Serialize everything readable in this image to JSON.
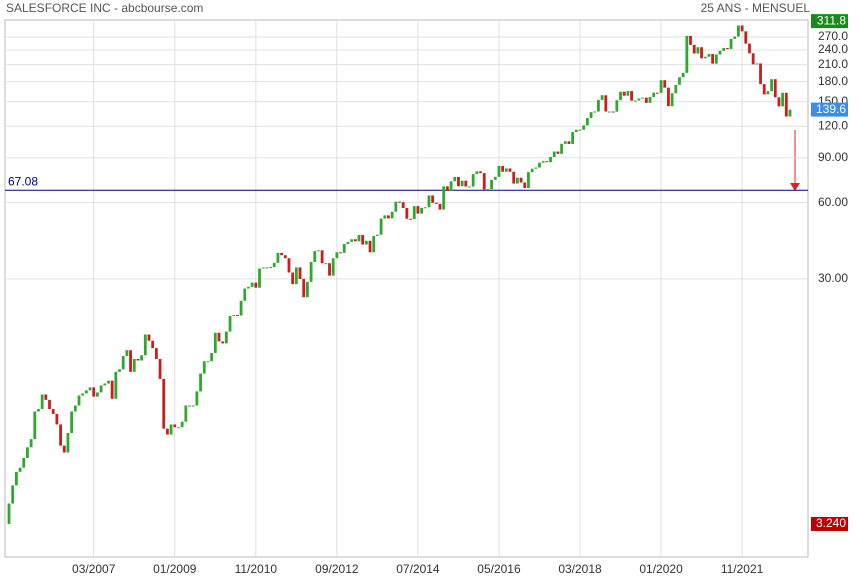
{
  "chart_data": {
    "type": "candlestick",
    "title": "SALESFORCE INC - abcbourse.com",
    "subtitle": "25 ANS - MENSUEL",
    "log_scale": true,
    "grid": true,
    "up_color": "#2fa82f",
    "down_color": "#c81e1e",
    "x": [
      "04/2005",
      "05/2005",
      "06/2005",
      "07/2005",
      "08/2005",
      "09/2005",
      "10/2005",
      "11/2005",
      "12/2005",
      "01/2006",
      "02/2006",
      "03/2006",
      "04/2006",
      "05/2006",
      "06/2006",
      "07/2006",
      "08/2006",
      "09/2006",
      "10/2006",
      "11/2006",
      "12/2006",
      "01/2007",
      "02/2007",
      "03/2007",
      "04/2007",
      "05/2007",
      "06/2007",
      "07/2007",
      "08/2007",
      "09/2007",
      "10/2007",
      "11/2007",
      "12/2007",
      "01/2008",
      "02/2008",
      "03/2008",
      "04/2008",
      "05/2008",
      "06/2008",
      "07/2008",
      "08/2008",
      "09/2008",
      "10/2008",
      "11/2008",
      "12/2008",
      "01/2009",
      "02/2009",
      "03/2009",
      "04/2009",
      "05/2009",
      "06/2009",
      "07/2009",
      "08/2009",
      "09/2009",
      "10/2009",
      "11/2009",
      "12/2009",
      "01/2010",
      "02/2010",
      "03/2010",
      "04/2010",
      "05/2010",
      "06/2010",
      "07/2010",
      "08/2010",
      "09/2010",
      "10/2010",
      "11/2010",
      "12/2010",
      "01/2011",
      "02/2011",
      "03/2011",
      "04/2011",
      "05/2011",
      "06/2011",
      "07/2011",
      "08/2011",
      "09/2011",
      "10/2011",
      "11/2011",
      "12/2011",
      "01/2012",
      "02/2012",
      "03/2012",
      "04/2012",
      "05/2012",
      "06/2012",
      "07/2012",
      "08/2012",
      "09/2012",
      "10/2012",
      "11/2012",
      "12/2012",
      "01/2013",
      "02/2013",
      "03/2013",
      "04/2013",
      "05/2013",
      "06/2013",
      "07/2013",
      "08/2013",
      "09/2013",
      "10/2013",
      "11/2013",
      "12/2013",
      "01/2014",
      "02/2014",
      "03/2014",
      "04/2014",
      "05/2014",
      "06/2014",
      "07/2014",
      "08/2014",
      "09/2014",
      "10/2014",
      "11/2014",
      "12/2014",
      "01/2015",
      "02/2015",
      "03/2015",
      "04/2015",
      "05/2015",
      "06/2015",
      "07/2015",
      "08/2015",
      "09/2015",
      "10/2015",
      "11/2015",
      "12/2015",
      "01/2016",
      "02/2016",
      "03/2016",
      "04/2016",
      "05/2016",
      "06/2016",
      "07/2016",
      "08/2016",
      "09/2016",
      "10/2016",
      "11/2016",
      "12/2016",
      "01/2017",
      "02/2017",
      "03/2017",
      "04/2017",
      "05/2017",
      "06/2017",
      "07/2017",
      "08/2017",
      "09/2017",
      "10/2017",
      "11/2017",
      "12/2017",
      "01/2018",
      "02/2018",
      "03/2018",
      "04/2018",
      "05/2018",
      "06/2018",
      "07/2018",
      "08/2018",
      "09/2018",
      "10/2018",
      "11/2018",
      "12/2018",
      "01/2019",
      "02/2019",
      "03/2019",
      "04/2019",
      "05/2019",
      "06/2019",
      "07/2019",
      "08/2019",
      "09/2019",
      "10/2019",
      "11/2019",
      "12/2019",
      "01/2020",
      "02/2020",
      "03/2020",
      "04/2020",
      "05/2020",
      "06/2020",
      "07/2020",
      "08/2020",
      "09/2020",
      "10/2020",
      "11/2020",
      "12/2020",
      "01/2021",
      "02/2021",
      "03/2021",
      "04/2021",
      "05/2021",
      "06/2021",
      "07/2021",
      "08/2021",
      "09/2021",
      "10/2021",
      "11/2021",
      "12/2021",
      "01/2022",
      "02/2022",
      "03/2022",
      "04/2022",
      "05/2022",
      "06/2022",
      "07/2022",
      "08/2022",
      "09/2022",
      "10/2022",
      "11/2022",
      "12/2022"
    ],
    "close": [
      3.9,
      4.6,
      5.2,
      5.4,
      5.9,
      6.5,
      7.0,
      9.0,
      9.2,
      10.5,
      10.0,
      9.2,
      8.8,
      8.0,
      6.6,
      6.2,
      7.4,
      9.0,
      9.5,
      10.4,
      10.6,
      10.9,
      11.2,
      10.3,
      10.7,
      11.4,
      11.6,
      11.9,
      10.1,
      12.9,
      13.2,
      14.9,
      15.7,
      12.9,
      14.5,
      14.3,
      15.0,
      18.1,
      17.1,
      16.0,
      14.5,
      12.1,
      7.7,
      7.3,
      8.0,
      7.8,
      7.8,
      8.2,
      9.5,
      9.5,
      9.5,
      10.8,
      12.7,
      14.2,
      14.2,
      15.3,
      18.4,
      17.0,
      16.7,
      18.6,
      21.4,
      21.6,
      21.5,
      24.6,
      27.5,
      27.9,
      29.0,
      27.7,
      33.0,
      33.3,
      33.3,
      33.4,
      34.7,
      38.0,
      37.2,
      36.2,
      31.8,
      28.6,
      33.3,
      30.0,
      25.4,
      29.2,
      35.0,
      38.6,
      38.9,
      34.6,
      34.6,
      30.9,
      36.2,
      38.2,
      38.0,
      41.2,
      42.0,
      43.0,
      42.2,
      44.7,
      41.0,
      42.4,
      38.2,
      44.3,
      44.8,
      51.9,
      53.4,
      52.0,
      55.2,
      60.5,
      60.2,
      57.1,
      51.8,
      51.6,
      58.1,
      54.3,
      57.2,
      57.5,
      64.0,
      59.9,
      59.3,
      56.3,
      69.5,
      66.8,
      72.8,
      75.7,
      69.6,
      73.2,
      69.4,
      69.4,
      77.7,
      79.7,
      78.4,
      67.6,
      67.8,
      73.8,
      75.8,
      83.7,
      79.4,
      81.8,
      79.4,
      71.3,
      75.2,
      72.0,
      68.5,
      79.1,
      81.6,
      82.5,
      86.2,
      87.4,
      86.6,
      90.8,
      95.4,
      93.4,
      102.3,
      104.7,
      102.2,
      113.9,
      116.3,
      116.3,
      121.0,
      129.3,
      136.4,
      137.2,
      152.5,
      159.0,
      137.2,
      137.2,
      137.0,
      152.0,
      164.2,
      158.4,
      165.2,
      151.4,
      151.7,
      154.5,
      155.6,
      148.4,
      156.5,
      162.8,
      162.6,
      182.3,
      170.4,
      144.0,
      162.0,
      174.9,
      187.3,
      194.8,
      272.6,
      251.3,
      232.3,
      246.0,
      222.5,
      225.6,
      231.4,
      211.9,
      230.3,
      238.1,
      244.2,
      241.9,
      265.3,
      271.2,
      299.7,
      284.2,
      254.1,
      232.8,
      210.6,
      212.3,
      175.9,
      160.3,
      165.0,
      184.0,
      156.1,
      143.8,
      162.6,
      131.1,
      139.6
    ],
    "ylim": [
      2.4,
      315
    ],
    "yticks": [
      {
        "value": 30,
        "label": "30.00"
      },
      {
        "value": 60,
        "label": "60.00"
      },
      {
        "value": 90,
        "label": "90.00"
      },
      {
        "value": 120,
        "label": "120.0"
      },
      {
        "value": 150,
        "label": "150.0"
      },
      {
        "value": 180,
        "label": "180.0"
      },
      {
        "value": 210,
        "label": "210.0"
      },
      {
        "value": 240,
        "label": "240.0"
      },
      {
        "value": 270,
        "label": "270.0"
      }
    ],
    "xticks": [
      "03/2007",
      "01/2009",
      "11/2010",
      "09/2012",
      "07/2014",
      "05/2016",
      "03/2018",
      "01/2020",
      "11/2021"
    ],
    "markers": [
      {
        "value": 311.8,
        "label": "311.8",
        "color": "#1a8a1a"
      },
      {
        "value": 139.6,
        "label": "139.6",
        "color": "#3b8ee8"
      },
      {
        "value": 3.24,
        "label": "3.240",
        "color": "#c00000"
      }
    ],
    "hline": {
      "value": 67.08,
      "color": "#000080"
    }
  }
}
